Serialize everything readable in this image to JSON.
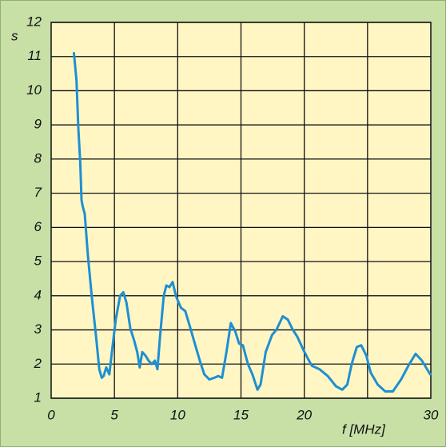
{
  "chart_data": {
    "type": "line",
    "ylabel": "s",
    "xlabel": "f [MHz]",
    "xlim": [
      0,
      30
    ],
    "ylim": [
      1,
      12
    ],
    "xticks": [
      0,
      5,
      10,
      15,
      20,
      30
    ],
    "xgrid": [
      5,
      10,
      15,
      20,
      25
    ],
    "yticks": [
      1,
      2,
      3,
      4,
      5,
      6,
      7,
      8,
      9,
      10,
      11,
      12
    ],
    "grid": true,
    "color": "#1f8fd2",
    "x": [
      1.8,
      2.0,
      2.15,
      2.3,
      2.4,
      2.5,
      2.65,
      2.9,
      3.2,
      3.55,
      3.8,
      4.0,
      4.15,
      4.35,
      4.6,
      4.8,
      5.1,
      5.45,
      5.7,
      5.95,
      6.25,
      6.55,
      6.8,
      7.0,
      7.2,
      7.45,
      7.7,
      7.95,
      8.2,
      8.4,
      8.6,
      8.9,
      9.1,
      9.35,
      9.6,
      9.85,
      10.25,
      10.6,
      11.0,
      11.35,
      11.75,
      12.1,
      12.5,
      12.9,
      13.2,
      13.5,
      13.85,
      14.2,
      14.55,
      14.85,
      15.15,
      15.55,
      15.9,
      16.3,
      16.55,
      16.95,
      17.45,
      17.8,
      18.3,
      18.7,
      19.1,
      19.45,
      19.95,
      20.3,
      20.6,
      21.2,
      21.85,
      22.5,
      23.0,
      23.4,
      23.75,
      24.15,
      24.5,
      24.9,
      25.25,
      25.8,
      26.4,
      27.0,
      27.65,
      28.3,
      28.8,
      29.3,
      29.95
    ],
    "values": [
      11.1,
      10.3,
      8.9,
      7.9,
      6.8,
      6.6,
      6.4,
      5.2,
      4.0,
      2.8,
      1.85,
      1.6,
      1.65,
      1.9,
      1.7,
      2.35,
      3.3,
      4.0,
      4.1,
      3.8,
      3.05,
      2.7,
      2.35,
      1.9,
      2.35,
      2.25,
      2.1,
      2.0,
      2.1,
      1.85,
      2.8,
      4.0,
      4.3,
      4.25,
      4.4,
      4.0,
      3.65,
      3.55,
      3.05,
      2.6,
      2.1,
      1.7,
      1.55,
      1.6,
      1.65,
      1.6,
      2.35,
      3.2,
      2.95,
      2.6,
      2.55,
      2.0,
      1.7,
      1.25,
      1.4,
      2.35,
      2.85,
      3.0,
      3.4,
      3.3,
      3.0,
      2.8,
      2.4,
      2.15,
      1.95,
      1.85,
      1.65,
      1.35,
      1.25,
      1.4,
      2.0,
      2.5,
      2.55,
      2.25,
      1.75,
      1.4,
      1.2,
      1.2,
      1.55,
      2.0,
      2.3,
      2.1,
      1.7
    ]
  }
}
